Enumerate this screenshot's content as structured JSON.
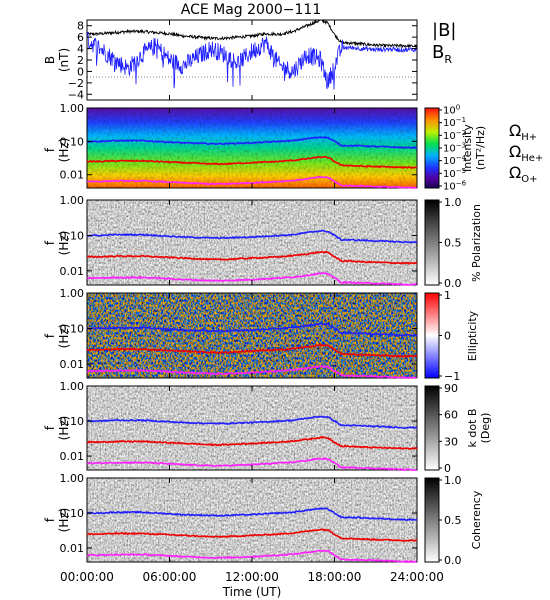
{
  "figure": {
    "title": "ACE Mag 2000−111",
    "xlabel": "Time (UT)",
    "x_ticks": [
      "00:00:00",
      "06:00:00",
      "12:00:00",
      "18:00:00",
      "24:00:00"
    ]
  },
  "legend": {
    "b_magnitude": "|B|",
    "b_radial_main": "B",
    "b_radial_sub": "R",
    "omega_h_main": "Ω",
    "omega_h_sub": "H+",
    "omega_he_main": "Ω",
    "omega_he_sub": "He+",
    "omega_o_main": "Ω",
    "omega_o_sub": "O+"
  },
  "panels": {
    "b": {
      "ylabel_top": "B",
      "ylabel_bottom": "(nT)",
      "yticks": [
        "8",
        "6",
        "4",
        "2",
        "0",
        "−2",
        "−4"
      ]
    },
    "intensity": {
      "ylabel_top": "f",
      "ylabel_bottom": "(Hz)",
      "yticks": [
        "1.00",
        "0.10",
        "0.01"
      ],
      "cbar_label_1": "Intensity",
      "cbar_label_2": "(nT²/Hz)",
      "cbar_ticks": [
        {
          "base": "10",
          "exp": "0"
        },
        {
          "base": "10",
          "exp": "−1"
        },
        {
          "base": "10",
          "exp": "−2"
        },
        {
          "base": "10",
          "exp": "−3"
        },
        {
          "base": "10",
          "exp": "−4"
        },
        {
          "base": "10",
          "exp": "−5"
        },
        {
          "base": "10",
          "exp": "−6"
        }
      ]
    },
    "polarization": {
      "ylabel_top": "f",
      "ylabel_bottom": "(Hz)",
      "yticks": [
        "1.00",
        "0.10",
        "0.01"
      ],
      "cbar_label_1": "% Polarization",
      "cbar_ticks": [
        "1.0",
        "0.5",
        "0.0"
      ]
    },
    "ellipticity": {
      "ylabel_top": "f",
      "ylabel_bottom": "(Hz)",
      "yticks": [
        "1.00",
        "0.10",
        "0.01"
      ],
      "cbar_label_1": "Ellipticity",
      "cbar_ticks": [
        "1",
        "0",
        "−1"
      ]
    },
    "kdotb": {
      "ylabel_top": "f",
      "ylabel_bottom": "(Hz)",
      "yticks": [
        "1.00",
        "0.10",
        "0.01"
      ],
      "cbar_label_1": "k dot B",
      "cbar_label_2": "(Deg)",
      "cbar_ticks": [
        "90",
        "60",
        "30",
        "0"
      ]
    },
    "coherency": {
      "ylabel_top": "f",
      "ylabel_bottom": "(Hz)",
      "yticks": [
        "1.00",
        "0.10",
        "0.01"
      ],
      "cbar_label_1": "Coherency",
      "cbar_ticks": [
        "1.0",
        "0.5",
        "0.0"
      ]
    }
  },
  "colors": {
    "b_magnitude": "#000000",
    "b_radial": "#2020ff",
    "omega_h": "#2020ff",
    "omega_he": "#ee0000",
    "omega_o": "#ff20ff"
  },
  "chart_data": {
    "type": "line",
    "x_range_hours": [
      0,
      24
    ],
    "b_panel": {
      "ylim": [
        -5,
        9
      ],
      "series": [
        {
          "name": "|B|",
          "x": [
            0,
            1,
            2,
            3,
            4,
            5,
            6,
            7,
            8,
            9,
            10,
            11,
            12,
            13,
            14,
            15,
            16,
            17,
            17.5,
            18,
            18.5,
            19,
            20,
            21,
            22,
            23,
            24
          ],
          "values": [
            6.5,
            6.6,
            6.8,
            7.0,
            7.0,
            6.8,
            6.6,
            6.2,
            6.0,
            5.8,
            5.8,
            6.0,
            6.2,
            6.6,
            6.5,
            7.0,
            8.0,
            9.0,
            8.5,
            6.5,
            5.0,
            5.0,
            4.8,
            4.6,
            4.5,
            4.5,
            4.4
          ]
        },
        {
          "name": "B_R",
          "x": [
            0,
            1,
            2,
            3,
            4,
            5,
            6,
            7,
            8,
            9,
            10,
            11,
            12,
            13,
            14,
            15,
            16,
            17,
            17.5,
            18,
            18.5,
            19,
            20,
            21,
            22,
            23,
            24
          ],
          "values": [
            5.5,
            4.0,
            2.0,
            0.5,
            3.0,
            4.5,
            2.0,
            1.0,
            2.5,
            4.0,
            3.0,
            1.5,
            3.5,
            5.0,
            1.0,
            0.0,
            3.0,
            2.0,
            -2.0,
            1.0,
            4.0,
            4.2,
            4.0,
            3.8,
            3.9,
            3.8,
            3.8
          ]
        }
      ]
    },
    "spectrogram_panels": {
      "ylim_hz": [
        0.004,
        1.0
      ],
      "y_scale": "log",
      "series": [
        {
          "name": "ΩH+",
          "x": [
            0,
            1,
            2,
            3,
            4,
            5,
            6,
            7,
            8,
            9,
            10,
            11,
            12,
            13,
            14,
            15,
            16,
            17,
            17.5,
            18,
            18.5,
            19,
            20,
            21,
            22,
            23,
            24
          ],
          "values": [
            0.1,
            0.1,
            0.105,
            0.105,
            0.105,
            0.1,
            0.095,
            0.09,
            0.088,
            0.085,
            0.085,
            0.088,
            0.09,
            0.095,
            0.1,
            0.105,
            0.12,
            0.135,
            0.13,
            0.1,
            0.075,
            0.075,
            0.073,
            0.07,
            0.068,
            0.065,
            0.065
          ]
        },
        {
          "name": "ΩHe+",
          "x": [
            0,
            1,
            2,
            3,
            4,
            5,
            6,
            7,
            8,
            9,
            10,
            11,
            12,
            13,
            14,
            15,
            16,
            17,
            17.5,
            18,
            18.5,
            19,
            20,
            21,
            22,
            23,
            24
          ],
          "values": [
            0.025,
            0.025,
            0.026,
            0.026,
            0.026,
            0.025,
            0.024,
            0.023,
            0.022,
            0.021,
            0.021,
            0.022,
            0.023,
            0.024,
            0.025,
            0.027,
            0.03,
            0.034,
            0.033,
            0.025,
            0.019,
            0.019,
            0.018,
            0.0175,
            0.017,
            0.0165,
            0.0165
          ]
        },
        {
          "name": "ΩO+",
          "x": [
            0,
            1,
            2,
            3,
            4,
            5,
            6,
            7,
            8,
            9,
            10,
            11,
            12,
            13,
            14,
            15,
            16,
            17,
            17.5,
            18,
            18.5,
            19,
            20,
            21,
            22,
            23,
            24
          ],
          "values": [
            0.0063,
            0.0063,
            0.0065,
            0.0065,
            0.0065,
            0.0063,
            0.006,
            0.0057,
            0.0055,
            0.0053,
            0.0053,
            0.0055,
            0.0057,
            0.006,
            0.0063,
            0.0067,
            0.0075,
            0.0085,
            0.0083,
            0.0063,
            0.0047,
            0.0047,
            0.0046,
            0.0044,
            0.0043,
            0.0041,
            0.0041
          ]
        }
      ]
    }
  }
}
